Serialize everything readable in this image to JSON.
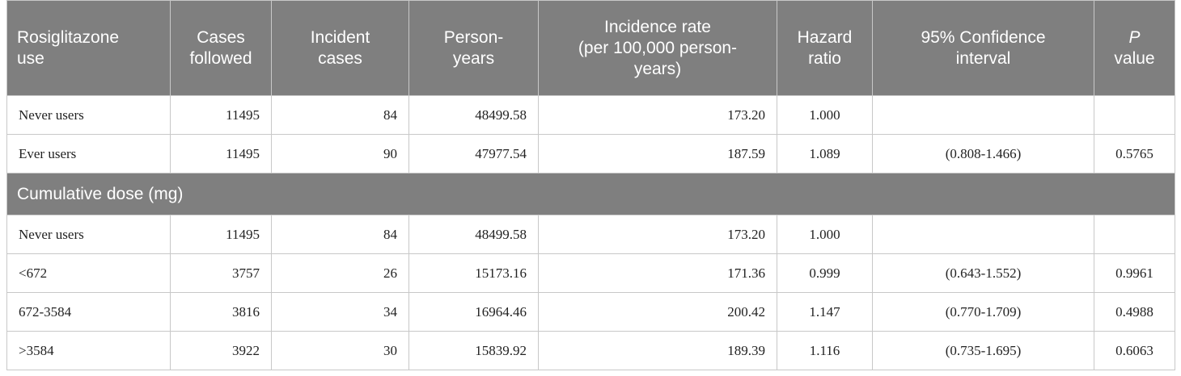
{
  "table": {
    "header": [
      [
        "Rosiglitazone",
        "use"
      ],
      [
        "Cases",
        "followed"
      ],
      [
        "Incident",
        "cases"
      ],
      [
        "Person-",
        "years"
      ],
      [
        "Incidence rate",
        "(per 100,000 person-",
        "years)"
      ],
      [
        "Hazard",
        "ratio"
      ],
      [
        "95% Confidence",
        "interval"
      ],
      [
        "P",
        "value"
      ]
    ],
    "groups": [
      {
        "rows": [
          [
            "Never users",
            "11495",
            "84",
            "48499.58",
            "173.20",
            "1.000",
            null,
            null
          ],
          [
            "Ever users",
            "11495",
            "90",
            "47977.54",
            "187.59",
            "1.089",
            "(0.808-1.466)",
            "0.5765"
          ]
        ]
      },
      {
        "title": "Cumulative dose (mg)",
        "rows": [
          [
            "Never users",
            "11495",
            "84",
            "48499.58",
            "173.20",
            "1.000",
            null,
            null
          ],
          [
            "<672",
            "3757",
            "26",
            "15173.16",
            "171.36",
            "0.999",
            "(0.643-1.552)",
            "0.9961"
          ],
          [
            "672-3584",
            "3816",
            "34",
            "16964.46",
            "200.42",
            "1.147",
            "(0.770-1.709)",
            "0.4988"
          ],
          [
            ">3584",
            "3922",
            "30",
            "15839.92",
            "189.39",
            "1.116",
            "(0.735-1.695)",
            "0.6063"
          ]
        ]
      }
    ]
  }
}
